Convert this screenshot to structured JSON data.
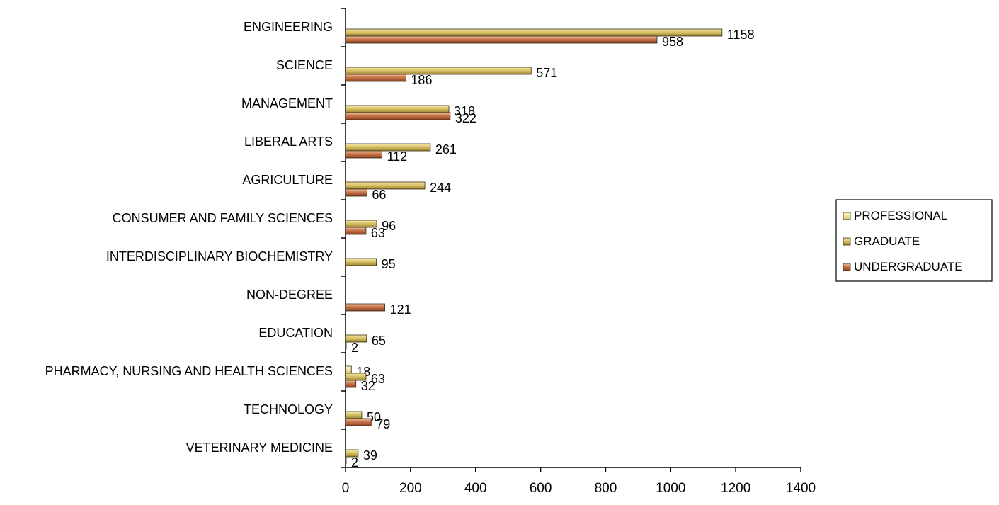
{
  "chart_data": {
    "type": "bar",
    "orientation": "horizontal",
    "categories": [
      "ENGINEERING",
      "SCIENCE",
      "MANAGEMENT",
      "LIBERAL ARTS",
      "AGRICULTURE",
      "CONSUMER AND FAMILY SCIENCES",
      "INTERDISCIPLINARY BIOCHEMISTRY",
      "NON-DEGREE",
      "EDUCATION",
      "PHARMACY, NURSING AND HEALTH SCIENCES",
      "TECHNOLOGY",
      "VETERINARY MEDICINE"
    ],
    "series": [
      {
        "name": "PROFESSIONAL",
        "color": "#f4eaa4",
        "values": [
          null,
          null,
          null,
          null,
          null,
          null,
          null,
          null,
          null,
          18,
          null,
          null
        ]
      },
      {
        "name": "GRADUATE",
        "color": "#d8c265",
        "values": [
          1158,
          571,
          318,
          261,
          244,
          96,
          95,
          null,
          65,
          63,
          50,
          39
        ]
      },
      {
        "name": "UNDERGRADUATE",
        "color": "#c8744a",
        "values": [
          958,
          186,
          322,
          112,
          66,
          63,
          null,
          121,
          2,
          32,
          79,
          2
        ]
      }
    ],
    "xlim": [
      0,
      1400
    ],
    "xticks": [
      0,
      200,
      400,
      600,
      800,
      1000,
      1200,
      1400
    ],
    "grid": false,
    "legend_position": "right"
  }
}
